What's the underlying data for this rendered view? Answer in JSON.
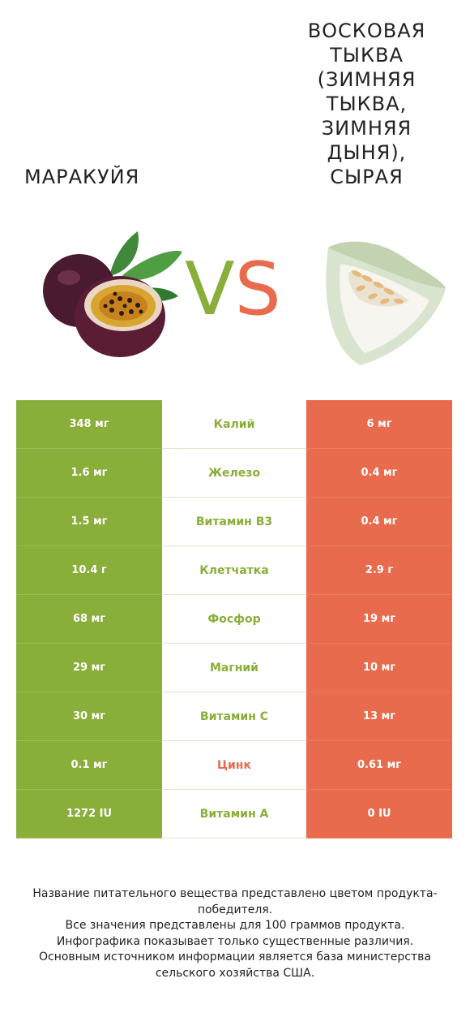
{
  "left_food": {
    "name": "Маракуйя"
  },
  "right_food": {
    "name": "Восковая тыква (зимняя тыква, зимняя дыня), сырая"
  },
  "vs": {
    "v": "V",
    "s": "S"
  },
  "colors": {
    "left": "#8aae3a",
    "right": "#e76b4c"
  },
  "rows": [
    {
      "nutrient": "Калий",
      "left": "348 мг",
      "right": "6 мг",
      "winner": "left"
    },
    {
      "nutrient": "Железо",
      "left": "1.6 мг",
      "right": "0.4 мг",
      "winner": "left"
    },
    {
      "nutrient": "Витамин B3",
      "left": "1.5 мг",
      "right": "0.4 мг",
      "winner": "left"
    },
    {
      "nutrient": "Клетчатка",
      "left": "10.4 г",
      "right": "2.9 г",
      "winner": "left"
    },
    {
      "nutrient": "Фосфор",
      "left": "68 мг",
      "right": "19 мг",
      "winner": "left"
    },
    {
      "nutrient": "Магний",
      "left": "29 мг",
      "right": "10 мг",
      "winner": "left"
    },
    {
      "nutrient": "Витамин C",
      "left": "30 мг",
      "right": "13 мг",
      "winner": "left"
    },
    {
      "nutrient": "Цинк",
      "left": "0.1 мг",
      "right": "0.61 мг",
      "winner": "right"
    },
    {
      "nutrient": "Витамин A",
      "left": "1272 IU",
      "right": "0 IU",
      "winner": "left"
    }
  ],
  "footer": {
    "line1": "Название питательного вещества представлено цветом продукта-победителя.",
    "line2": "Все значения представлены для 100 граммов продукта.",
    "line3": "Инфографика показывает только существенные различия.",
    "line4": "Основным источником информации является база министерства сельского хозяйства США."
  }
}
